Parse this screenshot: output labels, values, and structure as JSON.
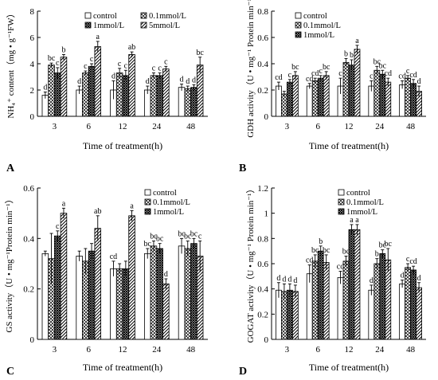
{
  "figure": {
    "type": "multi-panel bar chart"
  },
  "chart_data": [
    {
      "type": "bar",
      "panel_letter": "A",
      "categories": [
        "3",
        "6",
        "12",
        "24",
        "48"
      ],
      "xlabel": "Time of treatment(h)",
      "ylabel": "NH₄⁺ content（mg • g⁻¹FW）",
      "ylim": [
        0,
        8
      ],
      "yticks": [
        "0",
        "2",
        "4",
        "6",
        "8"
      ],
      "legend_columns": 2,
      "series": [
        {
          "name": "control",
          "pattern": "white",
          "values": [
            1.6,
            2.0,
            2.0,
            2.0,
            2.2
          ],
          "errors": [
            0.25,
            0.3,
            0.7,
            0.3,
            0.25
          ],
          "labels": [
            "d",
            "d",
            "d",
            "d",
            "d"
          ]
        },
        {
          "name": "0.1mmol/L",
          "pattern": "grid",
          "values": [
            3.9,
            3.3,
            3.3,
            3.1,
            2.1
          ],
          "errors": [
            0.15,
            0.15,
            0.35,
            0.2,
            0.2
          ],
          "labels": [
            "bc",
            "c",
            "c",
            "c",
            "d"
          ]
        },
        {
          "name": "1mmol/L",
          "pattern": "hatch",
          "values": [
            3.3,
            3.8,
            3.1,
            3.1,
            2.2
          ],
          "errors": [
            0.4,
            0.2,
            0.4,
            0.2,
            0.2
          ],
          "labels": [
            "c",
            "c",
            "c",
            "c",
            "d"
          ]
        },
        {
          "name": "5mmol/L",
          "pattern": "diag",
          "values": [
            4.5,
            5.3,
            4.7,
            3.6,
            3.9
          ],
          "errors": [
            0.2,
            0.4,
            0.2,
            0.2,
            0.6
          ],
          "labels": [
            "b",
            "a",
            "ab",
            "c",
            "bc"
          ]
        }
      ]
    },
    {
      "type": "bar",
      "panel_letter": "B",
      "categories": [
        "3",
        "6",
        "12",
        "24",
        "48"
      ],
      "xlabel": "Time of treatment(h)",
      "ylabel": "GDH activity（U • mg⁻¹ Protein min⁻¹）",
      "ylim": [
        0,
        0.8
      ],
      "yticks": [
        "0",
        "0.2",
        "0.4",
        "0.6",
        "0.8"
      ],
      "legend_columns": 1,
      "series": [
        {
          "name": "control",
          "pattern": "white",
          "values": [
            0.23,
            0.23,
            0.23,
            0.23,
            0.24
          ],
          "errors": [
            0.03,
            0.02,
            0.06,
            0.04,
            0.03
          ],
          "labels": [
            "cd",
            "cd",
            "c",
            "c",
            "cd"
          ]
        },
        {
          "name": "0.1mmol/L",
          "pattern": "grid",
          "values": [
            0.17,
            0.27,
            0.41,
            0.35,
            0.29
          ],
          "errors": [
            0.02,
            0.02,
            0.03,
            0.03,
            0.02
          ],
          "labels": [
            "",
            "cd",
            "b",
            "bc",
            "c"
          ]
        },
        {
          "name": "1mmol/L",
          "pattern": "hatch",
          "values": [
            0.26,
            0.29,
            0.39,
            0.32,
            0.25
          ],
          "errors": [
            0.02,
            0.02,
            0.04,
            0.03,
            0.03
          ],
          "labels": [
            "c",
            "c",
            "b",
            "bc",
            "cd"
          ]
        },
        {
          "name": "",
          "pattern": "diag",
          "values": [
            0.31,
            0.31,
            0.51,
            0.26,
            0.19
          ],
          "errors": [
            0.03,
            0.03,
            0.03,
            0.03,
            0.04
          ],
          "labels": [
            "bc",
            "bc",
            "a",
            "cd",
            "d"
          ]
        }
      ]
    },
    {
      "type": "bar",
      "panel_letter": "C",
      "categories": [
        "3",
        "6",
        "12",
        "24",
        "48"
      ],
      "xlabel": "Time of treatment(h)",
      "ylabel": "GS activity（U • mg⁻¹Protein min⁻¹）",
      "ylim": [
        0,
        0.6
      ],
      "yticks": [
        "0",
        "0.2",
        "0.4",
        "0.6"
      ],
      "legend_columns": 1,
      "series": [
        {
          "name": "control",
          "pattern": "white",
          "values": [
            0.34,
            0.33,
            0.28,
            0.34,
            0.37
          ],
          "errors": [
            0.01,
            0.02,
            0.03,
            0.02,
            0.03
          ],
          "labels": [
            "",
            "",
            "cd",
            "bc",
            "bc"
          ]
        },
        {
          "name": "0.1mmol/L",
          "pattern": "grid",
          "values": [
            0.32,
            0.31,
            0.28,
            0.37,
            0.36
          ],
          "errors": [
            0.1,
            0.05,
            0.02,
            0.02,
            0.03
          ],
          "labels": [
            "",
            "",
            "",
            "bc",
            "bc"
          ]
        },
        {
          "name": "1mmol/L",
          "pattern": "hatch",
          "values": [
            0.41,
            0.35,
            0.28,
            0.36,
            0.38
          ],
          "errors": [
            0.02,
            0.03,
            0.03,
            0.02,
            0.02
          ],
          "labels": [
            "c",
            "",
            "",
            "bc",
            "bc"
          ]
        },
        {
          "name": "",
          "pattern": "diag",
          "values": [
            0.5,
            0.44,
            0.49,
            0.22,
            0.33
          ],
          "errors": [
            0.02,
            0.05,
            0.02,
            0.02,
            0.06
          ],
          "labels": [
            "a",
            "ab",
            "a",
            "d",
            "c"
          ]
        }
      ]
    },
    {
      "type": "bar",
      "panel_letter": "D",
      "categories": [
        "3",
        "6",
        "12",
        "24",
        "48"
      ],
      "xlabel": "Time of treatment(h)",
      "ylabel": "GOGAT activity（U • mg⁻¹ Protein min⁻¹）",
      "ylim": [
        0,
        1.2
      ],
      "yticks": [
        "0",
        "0.2",
        "0.4",
        "0.6",
        "0.8",
        "1",
        "1.2"
      ],
      "legend_columns": 1,
      "series": [
        {
          "name": "control",
          "pattern": "white",
          "values": [
            0.39,
            0.52,
            0.49,
            0.39,
            0.44
          ],
          "errors": [
            0.06,
            0.07,
            0.05,
            0.04,
            0.03
          ],
          "labels": [
            "d",
            "cd",
            "cd",
            "d",
            "d"
          ]
        },
        {
          "name": "0.1mmol/L",
          "pattern": "grid",
          "values": [
            0.38,
            0.62,
            0.62,
            0.6,
            0.57
          ],
          "errors": [
            0.06,
            0.05,
            0.04,
            0.04,
            0.03
          ],
          "labels": [
            "d",
            "bc",
            "bc",
            "b",
            "c"
          ]
        },
        {
          "name": "1mmol/L",
          "pattern": "hatch",
          "values": [
            0.39,
            0.7,
            0.87,
            0.68,
            0.55
          ],
          "errors": [
            0.05,
            0.04,
            0.04,
            0.03,
            0.03
          ],
          "labels": [
            "d",
            "b",
            "a",
            "bc",
            "cd"
          ]
        },
        {
          "name": "",
          "pattern": "diag",
          "values": [
            0.38,
            0.61,
            0.87,
            0.63,
            0.41
          ],
          "errors": [
            0.05,
            0.06,
            0.04,
            0.09,
            0.04
          ],
          "labels": [
            "d",
            "bc",
            "a",
            "bc",
            "d"
          ]
        }
      ]
    }
  ]
}
